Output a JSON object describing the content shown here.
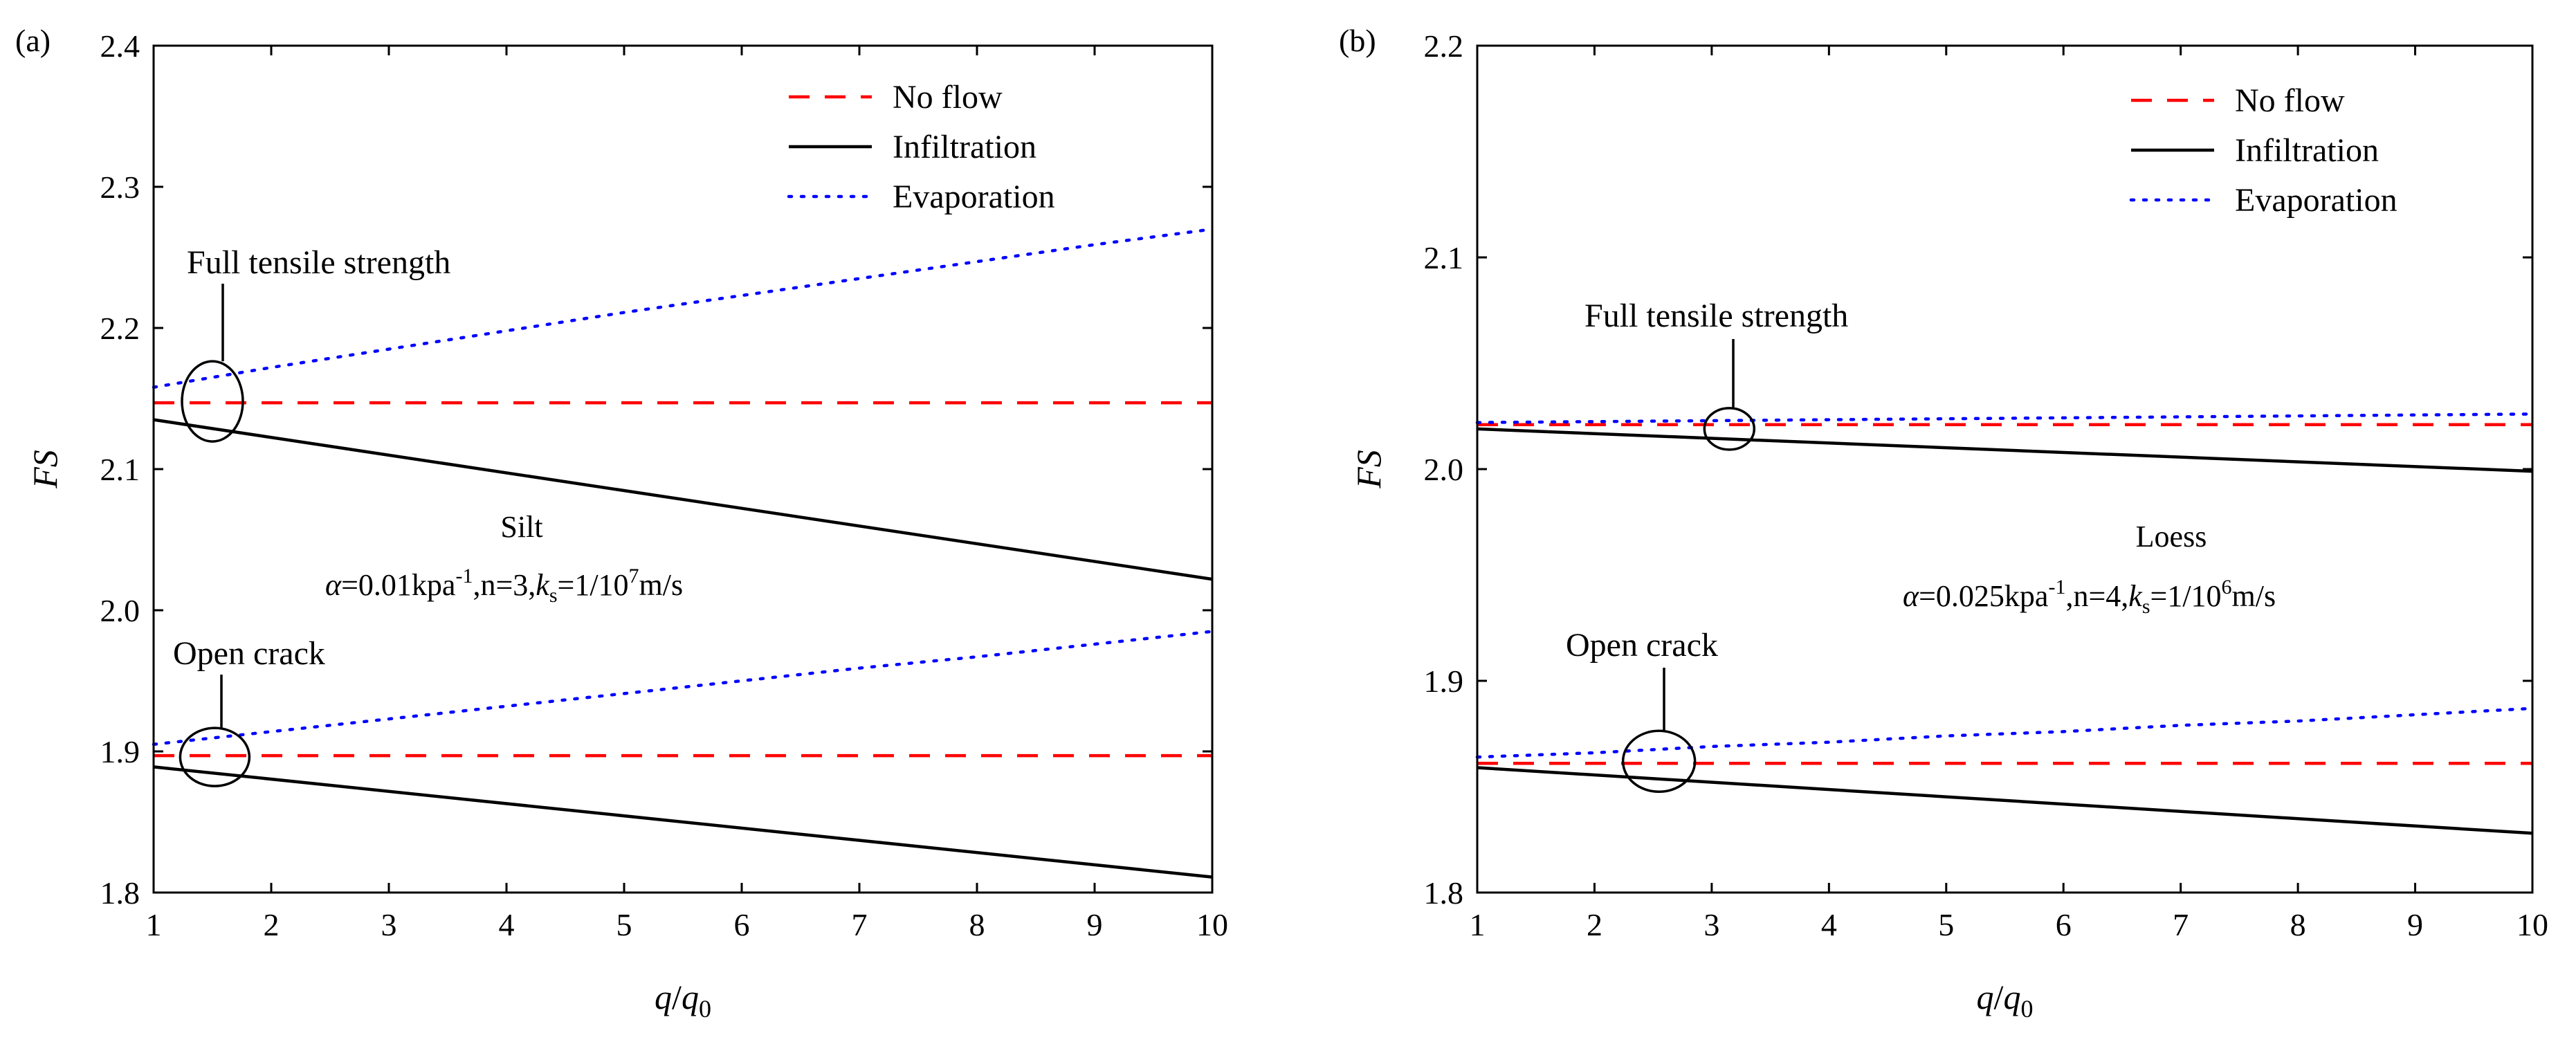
{
  "chart_data": [
    {
      "type": "line",
      "panel_label": "(a)",
      "xlabel": "q/q0",
      "ylabel": "FS",
      "xlim": [
        1,
        10
      ],
      "ylim": [
        1.8,
        2.4
      ],
      "xticks": [
        1,
        2,
        3,
        4,
        5,
        6,
        7,
        8,
        9,
        10
      ],
      "yticks": [
        1.8,
        1.9,
        2.0,
        2.1,
        2.2,
        2.3,
        2.4
      ],
      "ytick_labels": [
        "1.8",
        "1.9",
        "2.0",
        "2.1",
        "2.2",
        "2.3",
        "2.4"
      ],
      "legend": {
        "position": "top-right",
        "entries": [
          {
            "name": "No flow",
            "style": "dashed",
            "color": "#ff0000"
          },
          {
            "name": "Infiltration",
            "style": "solid",
            "color": "#000000"
          },
          {
            "name": "Evaporation",
            "style": "dotted",
            "color": "#0000ff"
          }
        ]
      },
      "series": [
        {
          "name": "No flow",
          "group": "Full tensile strength",
          "x": [
            1,
            10
          ],
          "y": [
            2.147,
            2.147
          ]
        },
        {
          "name": "Infiltration",
          "group": "Full tensile strength",
          "x": [
            1,
            10
          ],
          "y": [
            2.135,
            2.022
          ]
        },
        {
          "name": "Evaporation",
          "group": "Full tensile strength",
          "x": [
            1,
            2,
            3,
            4,
            5,
            6,
            7,
            8,
            9,
            10
          ],
          "y": [
            2.158,
            2.172,
            2.185,
            2.198,
            2.211,
            2.223,
            2.235,
            2.247,
            2.259,
            2.27
          ]
        },
        {
          "name": "No flow",
          "group": "Open crack",
          "x": [
            1,
            10
          ],
          "y": [
            1.897,
            1.897
          ]
        },
        {
          "name": "Infiltration",
          "group": "Open crack",
          "x": [
            1,
            10
          ],
          "y": [
            1.889,
            1.811
          ]
        },
        {
          "name": "Evaporation",
          "group": "Open crack",
          "x": [
            1,
            2,
            3,
            4,
            5,
            6,
            7,
            8,
            9,
            10
          ],
          "y": [
            1.905,
            1.914,
            1.923,
            1.932,
            1.941,
            1.95,
            1.959,
            1.967,
            1.976,
            1.985
          ]
        }
      ],
      "annotations": [
        {
          "text": "Full tensile strength",
          "x": 1.5,
          "y": 2.148
        },
        {
          "text": "Open crack",
          "x": 1.52,
          "y": 1.896
        }
      ],
      "notes": [
        {
          "id": "material",
          "text": "Silt"
        },
        {
          "id": "params",
          "text": "α=0.01kpa-1,n=3,ks=1/107m/s"
        }
      ]
    },
    {
      "type": "line",
      "panel_label": "(b)",
      "xlabel": "q/q0",
      "ylabel": "FS",
      "xlim": [
        1,
        10
      ],
      "ylim": [
        1.8,
        2.2
      ],
      "xticks": [
        1,
        2,
        3,
        4,
        5,
        6,
        7,
        8,
        9,
        10
      ],
      "yticks": [
        1.8,
        1.9,
        2.0,
        2.1,
        2.2
      ],
      "ytick_labels": [
        "1.8",
        "1.9",
        "2.0",
        "2.1",
        "2.2"
      ],
      "legend": {
        "position": "top-right",
        "entries": [
          {
            "name": "No flow",
            "style": "dashed",
            "color": "#ff0000"
          },
          {
            "name": "Infiltration",
            "style": "solid",
            "color": "#000000"
          },
          {
            "name": "Evaporation",
            "style": "dotted",
            "color": "#0000ff"
          }
        ]
      },
      "series": [
        {
          "name": "No flow",
          "group": "Full tensile strength",
          "x": [
            1,
            10
          ],
          "y": [
            2.021,
            2.021
          ]
        },
        {
          "name": "Infiltration",
          "group": "Full tensile strength",
          "x": [
            1,
            10
          ],
          "y": [
            2.019,
            1.999
          ]
        },
        {
          "name": "Evaporation",
          "group": "Full tensile strength",
          "x": [
            1,
            10
          ],
          "y": [
            2.022,
            2.026
          ]
        },
        {
          "name": "No flow",
          "group": "Open crack",
          "x": [
            1,
            10
          ],
          "y": [
            1.861,
            1.861
          ]
        },
        {
          "name": "Infiltration",
          "group": "Open crack",
          "x": [
            1,
            10
          ],
          "y": [
            1.859,
            1.828
          ]
        },
        {
          "name": "Evaporation",
          "group": "Open crack",
          "x": [
            1,
            2,
            3,
            4,
            5,
            6,
            7,
            8,
            9,
            10
          ],
          "y": [
            1.864,
            1.866,
            1.869,
            1.871,
            1.874,
            1.876,
            1.879,
            1.881,
            1.884,
            1.887
          ]
        }
      ],
      "annotations": [
        {
          "text": "Full tensile strength",
          "x": 3.15,
          "y": 2.019
        },
        {
          "text": "Open crack",
          "x": 2.55,
          "y": 1.862
        }
      ],
      "notes": [
        {
          "id": "material",
          "text": "Loess"
        },
        {
          "id": "params",
          "text": "α=0.025kpa-1,n=4,ks=1/106m/s"
        }
      ]
    }
  ]
}
